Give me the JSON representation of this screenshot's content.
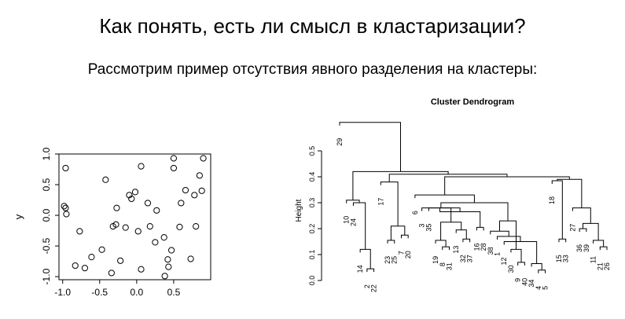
{
  "slide": {
    "title": "Как понять, есть ли смысл в кластаризации?",
    "subtitle": "Рассмотрим пример отсутствия явного разделения на кластеры:"
  },
  "chart_data": [
    {
      "type": "scatter",
      "title": "",
      "xlabel": "",
      "ylabel": "y",
      "xlim": [
        -1.05,
        1.0
      ],
      "ylim": [
        -1.05,
        1.0
      ],
      "xticks": [
        "-1.0",
        "-0.5",
        "0.0",
        "0.5"
      ],
      "yticks": [
        "-1.0",
        "-0.5",
        "0.0",
        "0.5",
        "1.0"
      ],
      "marker": "open-circle",
      "points": [
        {
          "x": -0.96,
          "y": 0.77
        },
        {
          "x": -0.98,
          "y": 0.15
        },
        {
          "x": -0.96,
          "y": 0.12
        },
        {
          "x": -0.95,
          "y": 0.02
        },
        {
          "x": -0.77,
          "y": -0.26
        },
        {
          "x": -0.83,
          "y": -0.82
        },
        {
          "x": -0.7,
          "y": -0.86
        },
        {
          "x": -0.61,
          "y": -0.68
        },
        {
          "x": -0.47,
          "y": -0.56
        },
        {
          "x": -0.42,
          "y": 0.58
        },
        {
          "x": -0.34,
          "y": -0.94
        },
        {
          "x": -0.32,
          "y": -0.18
        },
        {
          "x": -0.28,
          "y": -0.15
        },
        {
          "x": -0.27,
          "y": 0.12
        },
        {
          "x": -0.22,
          "y": -0.74
        },
        {
          "x": -0.15,
          "y": -0.2
        },
        {
          "x": -0.1,
          "y": 0.33
        },
        {
          "x": -0.07,
          "y": 0.27
        },
        {
          "x": -0.02,
          "y": 0.38
        },
        {
          "x": 0.02,
          "y": -0.26
        },
        {
          "x": 0.06,
          "y": 0.8
        },
        {
          "x": 0.06,
          "y": -0.88
        },
        {
          "x": 0.15,
          "y": 0.2
        },
        {
          "x": 0.18,
          "y": -0.18
        },
        {
          "x": 0.25,
          "y": -0.44
        },
        {
          "x": 0.27,
          "y": 0.08
        },
        {
          "x": 0.37,
          "y": -0.36
        },
        {
          "x": 0.42,
          "y": -0.72
        },
        {
          "x": 0.47,
          "y": -0.57
        },
        {
          "x": 0.5,
          "y": 0.93
        },
        {
          "x": 0.5,
          "y": 0.77
        },
        {
          "x": 0.58,
          "y": -0.19
        },
        {
          "x": 0.6,
          "y": 0.2
        },
        {
          "x": 0.66,
          "y": 0.41
        },
        {
          "x": 0.73,
          "y": -0.71
        },
        {
          "x": 0.78,
          "y": 0.33
        },
        {
          "x": 0.8,
          "y": -0.18
        },
        {
          "x": 0.85,
          "y": 0.65
        },
        {
          "x": 0.88,
          "y": 0.4
        },
        {
          "x": 0.9,
          "y": 0.93
        },
        {
          "x": 0.43,
          "y": -0.84
        },
        {
          "x": 0.38,
          "y": -0.99
        }
      ]
    },
    {
      "type": "dendrogram",
      "title": "Cluster Dendrogram",
      "ylabel": "Height",
      "ylim": [
        0,
        0.6
      ],
      "yticks": [
        "0.0",
        "0.1",
        "0.2",
        "0.3",
        "0.4",
        "0.5"
      ],
      "leaves": [
        "29",
        "10",
        "24",
        "14",
        "2",
        "22",
        "17",
        "23",
        "25",
        "7",
        "20",
        "6",
        "3",
        "35",
        "19",
        "8",
        "31",
        "13",
        "32",
        "37",
        "16",
        "28",
        "38",
        "1",
        "12",
        "30",
        "9",
        "40",
        "34",
        "4",
        "5",
        "18",
        "15",
        "33",
        "27",
        "36",
        "39",
        "11",
        "21",
        "26"
      ],
      "merges": [
        {
          "left": "leaf:2",
          "right": "leaf:22",
          "height": 0.045
        },
        {
          "left": "leaf:14",
          "right": "node:0",
          "height": 0.12
        },
        {
          "left": "leaf:24",
          "right": "node:1",
          "height": 0.3
        },
        {
          "left": "leaf:10",
          "right": "node:2",
          "height": 0.31
        },
        {
          "left": "leaf:23",
          "right": "leaf:25",
          "height": 0.155
        },
        {
          "left": "leaf:7",
          "right": "leaf:20",
          "height": 0.175
        },
        {
          "left": "node:4",
          "right": "node:5",
          "height": 0.21
        },
        {
          "left": "leaf:17",
          "right": "node:6",
          "height": 0.38
        },
        {
          "left": "leaf:9",
          "right": "leaf:40",
          "height": 0.07
        },
        {
          "left": "leaf:30",
          "right": "node:8",
          "height": 0.12
        },
        {
          "left": "leaf:4",
          "right": "leaf:5",
          "height": 0.04
        },
        {
          "left": "leaf:34",
          "right": "node:10",
          "height": 0.065
        },
        {
          "left": "leaf:12",
          "right": "node:11",
          "height": 0.15
        },
        {
          "left": "leaf:1",
          "right": "node:12",
          "height": 0.17
        },
        {
          "left": "leaf:38",
          "right": "node:13",
          "height": 0.19
        },
        {
          "left": "node:9",
          "right": "node:14",
          "height": 0.23
        },
        {
          "left": "leaf:8",
          "right": "leaf:31",
          "height": 0.13
        },
        {
          "left": "leaf:19",
          "right": "node:16",
          "height": 0.155
        },
        {
          "left": "leaf:32",
          "right": "leaf:37",
          "height": 0.16
        },
        {
          "left": "leaf:13",
          "right": "node:18",
          "height": 0.195
        },
        {
          "left": "node:17",
          "right": "node:19",
          "height": 0.225
        },
        {
          "left": "leaf:35",
          "right": "node:20",
          "height": 0.28
        },
        {
          "left": "leaf:16",
          "right": "leaf:28",
          "height": 0.205
        },
        {
          "left": "node:21",
          "right": "node:22",
          "height": 0.265
        },
        {
          "left": "leaf:3",
          "right": "node:23",
          "height": 0.28
        },
        {
          "left": "node:24",
          "right": "node:15",
          "height": 0.3
        },
        {
          "left": "leaf:6",
          "right": "node:25",
          "height": 0.33
        },
        {
          "left": "leaf:15",
          "right": "leaf:33",
          "height": 0.16
        },
        {
          "left": "leaf:18",
          "right": "node:27",
          "height": 0.385
        },
        {
          "left": "leaf:36",
          "right": "leaf:39",
          "height": 0.2
        },
        {
          "left": "leaf:21",
          "right": "leaf:26",
          "height": 0.13
        },
        {
          "left": "leaf:11",
          "right": "node:30",
          "height": 0.155
        },
        {
          "left": "node:29",
          "right": "node:31",
          "height": 0.22
        },
        {
          "left": "leaf:27",
          "right": "node:32",
          "height": 0.28
        },
        {
          "left": "node:28",
          "right": "node:33",
          "height": 0.39
        },
        {
          "left": "node:26",
          "right": "node:34",
          "height": 0.4
        },
        {
          "left": "node:7",
          "right": "node:35",
          "height": 0.41
        },
        {
          "left": "node:3",
          "right": "node:36",
          "height": 0.42
        },
        {
          "left": "leaf:29",
          "right": "node:37",
          "height": 0.61
        }
      ]
    }
  ]
}
